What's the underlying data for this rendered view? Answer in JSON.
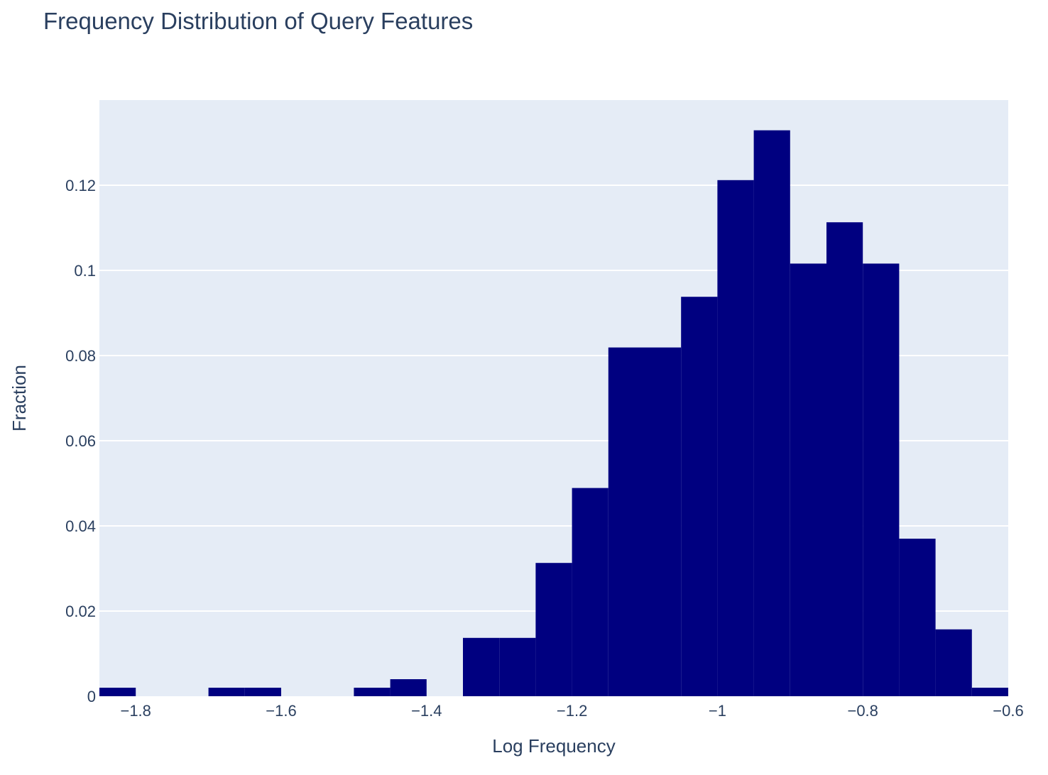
{
  "chart_data": {
    "type": "bar",
    "title": "Frequency Distribution of Query Features",
    "xlabel": "Log Frequency",
    "ylabel": "Fraction",
    "xlim": [
      -1.85,
      -0.6
    ],
    "ylim": [
      0,
      0.14
    ],
    "x_ticks": [
      {
        "value": -1.8,
        "label": "−1.8"
      },
      {
        "value": -1.6,
        "label": "−1.6"
      },
      {
        "value": -1.4,
        "label": "−1.4"
      },
      {
        "value": -1.2,
        "label": "−1.2"
      },
      {
        "value": -1.0,
        "label": "−1"
      },
      {
        "value": -0.8,
        "label": "−0.8"
      },
      {
        "value": -0.6,
        "label": "−0.6"
      }
    ],
    "y_ticks": [
      {
        "value": 0,
        "label": "0"
      },
      {
        "value": 0.02,
        "label": "0.02"
      },
      {
        "value": 0.04,
        "label": "0.04"
      },
      {
        "value": 0.06,
        "label": "0.06"
      },
      {
        "value": 0.08,
        "label": "0.08"
      },
      {
        "value": 0.1,
        "label": "0.1"
      },
      {
        "value": 0.12,
        "label": "0.12"
      }
    ],
    "bin_width": 0.05,
    "bins": [
      {
        "x0": -1.85,
        "x1": -1.8,
        "value": 0.002
      },
      {
        "x0": -1.8,
        "x1": -1.75,
        "value": 0.0
      },
      {
        "x0": -1.75,
        "x1": -1.7,
        "value": 0.0
      },
      {
        "x0": -1.7,
        "x1": -1.65,
        "value": 0.002
      },
      {
        "x0": -1.65,
        "x1": -1.6,
        "value": 0.002
      },
      {
        "x0": -1.6,
        "x1": -1.55,
        "value": 0.0
      },
      {
        "x0": -1.55,
        "x1": -1.5,
        "value": 0.0
      },
      {
        "x0": -1.5,
        "x1": -1.45,
        "value": 0.002
      },
      {
        "x0": -1.45,
        "x1": -1.4,
        "value": 0.004
      },
      {
        "x0": -1.4,
        "x1": -1.35,
        "value": 0.0
      },
      {
        "x0": -1.35,
        "x1": -1.3,
        "value": 0.0137
      },
      {
        "x0": -1.3,
        "x1": -1.25,
        "value": 0.0137
      },
      {
        "x0": -1.25,
        "x1": -1.2,
        "value": 0.0313
      },
      {
        "x0": -1.2,
        "x1": -1.15,
        "value": 0.0489
      },
      {
        "x0": -1.15,
        "x1": -1.1,
        "value": 0.0819
      },
      {
        "x0": -1.1,
        "x1": -1.05,
        "value": 0.0819
      },
      {
        "x0": -1.05,
        "x1": -1.0,
        "value": 0.0938
      },
      {
        "x0": -1.0,
        "x1": -0.95,
        "value": 0.1212
      },
      {
        "x0": -0.95,
        "x1": -0.9,
        "value": 0.1329
      },
      {
        "x0": -0.9,
        "x1": -0.85,
        "value": 0.1016
      },
      {
        "x0": -0.85,
        "x1": -0.8,
        "value": 0.1113
      },
      {
        "x0": -0.8,
        "x1": -0.75,
        "value": 0.1016
      },
      {
        "x0": -0.75,
        "x1": -0.7,
        "value": 0.037
      },
      {
        "x0": -0.7,
        "x1": -0.65,
        "value": 0.0157
      },
      {
        "x0": -0.65,
        "x1": -0.6,
        "value": 0.002
      }
    ],
    "grid": true,
    "colors": {
      "bar": "#000080",
      "plot_background": "#e5ecf6",
      "gridline": "#ffffff",
      "text": "#2a3f5f"
    }
  }
}
